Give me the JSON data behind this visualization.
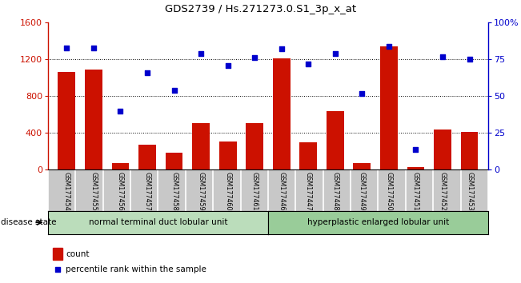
{
  "title": "GDS2739 / Hs.271273.0.S1_3p_x_at",
  "samples": [
    "GSM177454",
    "GSM177455",
    "GSM177456",
    "GSM177457",
    "GSM177458",
    "GSM177459",
    "GSM177460",
    "GSM177461",
    "GSM177446",
    "GSM177447",
    "GSM177448",
    "GSM177449",
    "GSM177450",
    "GSM177451",
    "GSM177452",
    "GSM177453"
  ],
  "bar_values": [
    1060,
    1090,
    75,
    270,
    185,
    510,
    310,
    510,
    1210,
    295,
    640,
    70,
    1340,
    30,
    440,
    415
  ],
  "scatter_values": [
    83,
    83,
    40,
    66,
    54,
    79,
    71,
    76,
    82,
    72,
    79,
    52,
    84,
    14,
    77,
    75
  ],
  "bar_color": "#cc1100",
  "scatter_color": "#0000cc",
  "ylim_left": [
    0,
    1600
  ],
  "ylim_right": [
    0,
    100
  ],
  "yticks_left": [
    0,
    400,
    800,
    1200,
    1600
  ],
  "yticks_right": [
    0,
    25,
    50,
    75,
    100
  ],
  "ytick_labels_right": [
    "0",
    "25",
    "50",
    "75",
    "100%"
  ],
  "group1_label": "normal terminal duct lobular unit",
  "group2_label": "hyperplastic enlarged lobular unit",
  "group1_count": 8,
  "group2_count": 8,
  "disease_state_label": "disease state",
  "legend_bar_label": "count",
  "legend_scatter_label": "percentile rank within the sample",
  "group1_color": "#bbddbb",
  "group2_color": "#99cc99",
  "bg_color": "#ffffff",
  "xticklabel_bg": "#c8c8c8"
}
